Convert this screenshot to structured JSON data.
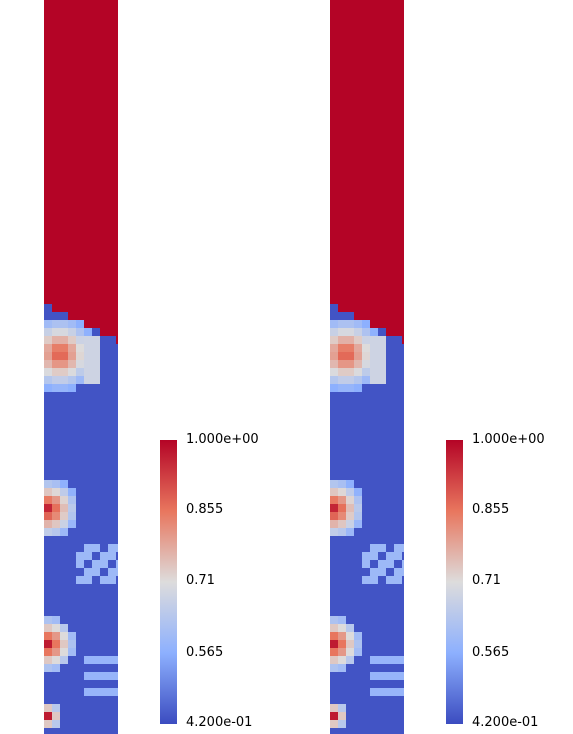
{
  "panels": [
    {
      "name": "left"
    },
    {
      "name": "right"
    }
  ],
  "colorbar": {
    "ticks": [
      "1.000e+00",
      "0.855",
      "0.71",
      "0.565",
      "4.200e-01"
    ],
    "range": [
      0.42,
      1.0
    ],
    "colors": {
      "high": "#b40426",
      "mid": "#dddcdc",
      "low": "#3b4cc0"
    }
  }
}
